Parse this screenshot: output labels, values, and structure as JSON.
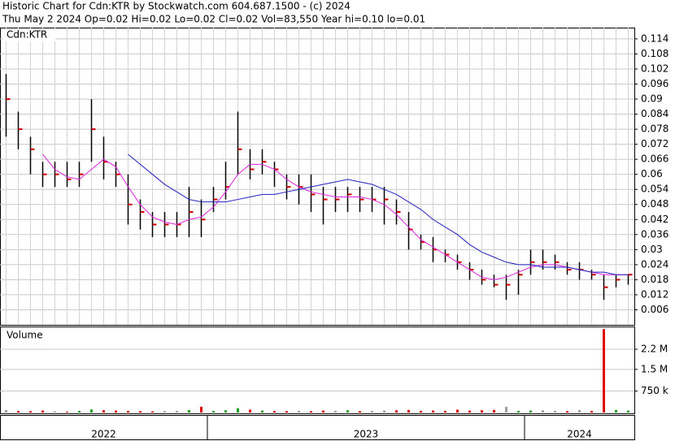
{
  "chart_data": {
    "type": "ohlc",
    "title": "Historic Chart for Cdn:KTR by Stockwatch.com 604.687.1500 - (c) 2024",
    "subtitle": "Thu May  2 2024  Op=0.02  Hi=0.02  Lo=0.02  Cl=0.02  Vol=83,550  Year hi=0.10  lo=0.01",
    "price_label": "Cdn:KTR",
    "volume_label": "Volume",
    "categories": [
      "2022",
      "2022",
      "2022",
      "2022",
      "2022",
      "2022",
      "2022",
      "2022",
      "2022",
      "2022",
      "2022",
      "2022",
      "2022",
      "2022",
      "2022",
      "2022",
      "2022",
      "2023",
      "2023",
      "2023",
      "2023",
      "2023",
      "2023",
      "2023",
      "2023",
      "2023",
      "2023",
      "2023",
      "2023",
      "2023",
      "2023",
      "2023",
      "2023",
      "2023",
      "2023",
      "2023",
      "2023",
      "2023",
      "2023",
      "2023",
      "2023",
      "2023",
      "2023",
      "2024",
      "2024",
      "2024",
      "2024",
      "2024",
      "2024",
      "2024",
      "2024",
      "2024"
    ],
    "high": [
      0.1,
      0.085,
      0.075,
      0.065,
      0.065,
      0.065,
      0.065,
      0.09,
      0.075,
      0.065,
      0.06,
      0.05,
      0.045,
      0.045,
      0.045,
      0.055,
      0.05,
      0.055,
      0.065,
      0.085,
      0.07,
      0.07,
      0.065,
      0.06,
      0.06,
      0.06,
      0.055,
      0.055,
      0.055,
      0.055,
      0.055,
      0.055,
      0.05,
      0.045,
      0.036,
      0.035,
      0.03,
      0.028,
      0.025,
      0.022,
      0.02,
      0.02,
      0.022,
      0.03,
      0.03,
      0.028,
      0.025,
      0.025,
      0.022,
      0.02,
      0.02,
      0.02
    ],
    "low": [
      0.075,
      0.07,
      0.06,
      0.055,
      0.055,
      0.055,
      0.055,
      0.065,
      0.058,
      0.055,
      0.04,
      0.038,
      0.035,
      0.035,
      0.035,
      0.035,
      0.035,
      0.045,
      0.05,
      0.06,
      0.058,
      0.06,
      0.055,
      0.05,
      0.048,
      0.045,
      0.04,
      0.045,
      0.045,
      0.045,
      0.045,
      0.04,
      0.04,
      0.03,
      0.03,
      0.025,
      0.025,
      0.022,
      0.018,
      0.016,
      0.015,
      0.01,
      0.012,
      0.02,
      0.022,
      0.022,
      0.02,
      0.018,
      0.018,
      0.01,
      0.015,
      0.016
    ],
    "close": [
      0.09,
      0.078,
      0.07,
      0.06,
      0.06,
      0.058,
      0.06,
      0.078,
      0.065,
      0.06,
      0.048,
      0.045,
      0.04,
      0.04,
      0.04,
      0.045,
      0.042,
      0.05,
      0.055,
      0.07,
      0.062,
      0.065,
      0.062,
      0.055,
      0.055,
      0.052,
      0.05,
      0.05,
      0.052,
      0.05,
      0.05,
      0.05,
      0.045,
      0.038,
      0.033,
      0.03,
      0.028,
      0.025,
      0.022,
      0.018,
      0.016,
      0.016,
      0.02,
      0.025,
      0.025,
      0.025,
      0.022,
      0.022,
      0.02,
      0.015,
      0.018,
      0.02
    ],
    "bar_color": "#000000",
    "close_color": "#d00000",
    "lines": [
      {
        "color": "#e020e0",
        "values": [
          null,
          null,
          null,
          0.068,
          0.062,
          0.059,
          0.058,
          0.062,
          0.066,
          0.063,
          0.055,
          0.048,
          0.043,
          0.041,
          0.04,
          0.042,
          0.043,
          0.047,
          0.053,
          0.06,
          0.064,
          0.064,
          0.062,
          0.058,
          0.055,
          0.053,
          0.052,
          0.051,
          0.051,
          0.051,
          0.05,
          0.048,
          0.044,
          0.039,
          0.034,
          0.031,
          0.028,
          0.025,
          0.022,
          0.019,
          0.018,
          0.019,
          0.021,
          0.023,
          0.024,
          0.024,
          0.023,
          0.022,
          0.021,
          0.02,
          0.02,
          0.02
        ]
      },
      {
        "color": "#2020c0",
        "values": [
          null,
          null,
          null,
          null,
          null,
          null,
          null,
          null,
          null,
          null,
          0.068,
          0.064,
          0.06,
          0.056,
          0.053,
          0.05,
          0.049,
          0.049,
          0.049,
          0.05,
          0.051,
          0.052,
          0.052,
          0.053,
          0.054,
          0.055,
          0.056,
          0.057,
          0.058,
          0.057,
          0.056,
          0.054,
          0.052,
          0.049,
          0.046,
          0.042,
          0.039,
          0.036,
          0.032,
          0.029,
          0.027,
          0.025,
          0.024,
          0.024,
          0.023,
          0.023,
          0.023,
          0.022,
          0.021,
          0.021,
          0.02,
          0.02
        ]
      }
    ],
    "ylim": [
      0,
      0.1185
    ],
    "yticks": [
      0.114,
      0.108,
      0.102,
      0.096,
      0.09,
      0.084,
      0.078,
      0.072,
      0.066,
      0.06,
      0.054,
      0.048,
      0.042,
      0.036,
      0.03,
      0.024,
      0.018,
      0.012,
      0.006
    ],
    "grid": true,
    "volume": [
      90000,
      60000,
      50000,
      70000,
      40000,
      30000,
      60000,
      110000,
      80000,
      70000,
      60000,
      50000,
      40000,
      50000,
      60000,
      90000,
      200000,
      60000,
      80000,
      150000,
      100000,
      70000,
      60000,
      50000,
      60000,
      50000,
      70000,
      60000,
      80000,
      50000,
      60000,
      70000,
      80000,
      90000,
      60000,
      70000,
      60000,
      100000,
      70000,
      80000,
      90000,
      200000,
      60000,
      70000,
      80000,
      60000,
      50000,
      90000,
      60000,
      2900000,
      90000,
      70000
    ],
    "volume_ylim": [
      0,
      2990000
    ],
    "volume_yticks": [
      {
        "value": 2200000,
        "label": "2.2 M"
      },
      {
        "value": 1500000,
        "label": "1.5 M"
      },
      {
        "value": 750000,
        "label": "750 k"
      }
    ],
    "volume_colors": {
      "up": "#20a020",
      "down": "#e00000",
      "flat": "#a0a0a0"
    }
  }
}
